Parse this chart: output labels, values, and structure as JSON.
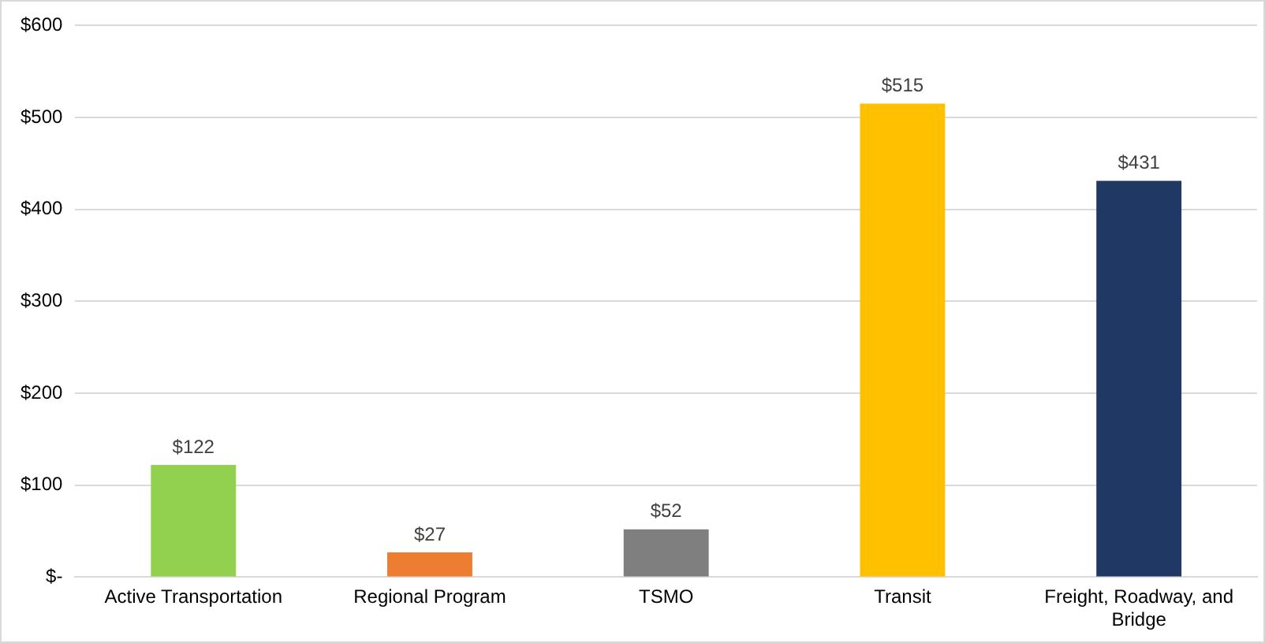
{
  "chart_data": {
    "type": "bar",
    "categories": [
      "Active Transportation",
      "Regional Program",
      "TSMO",
      "Transit",
      "Freight, Roadway, and Bridge"
    ],
    "values": [
      122,
      27,
      52,
      515,
      431
    ],
    "colors": [
      "#92d050",
      "#ed7d31",
      "#7f7f7f",
      "#ffc000",
      "#1f3864"
    ],
    "value_labels": [
      "$122",
      "$27",
      "$52",
      "$515",
      "$431"
    ],
    "ylim": [
      0,
      600
    ],
    "yticks": [
      {
        "value": 0,
        "label": "$-"
      },
      {
        "value": 100,
        "label": "$100"
      },
      {
        "value": 200,
        "label": "$200"
      },
      {
        "value": 300,
        "label": "$300"
      },
      {
        "value": 400,
        "label": "$400"
      },
      {
        "value": 500,
        "label": "$500"
      },
      {
        "value": 600,
        "label": "$600"
      }
    ],
    "grid": "y",
    "legend": false
  }
}
